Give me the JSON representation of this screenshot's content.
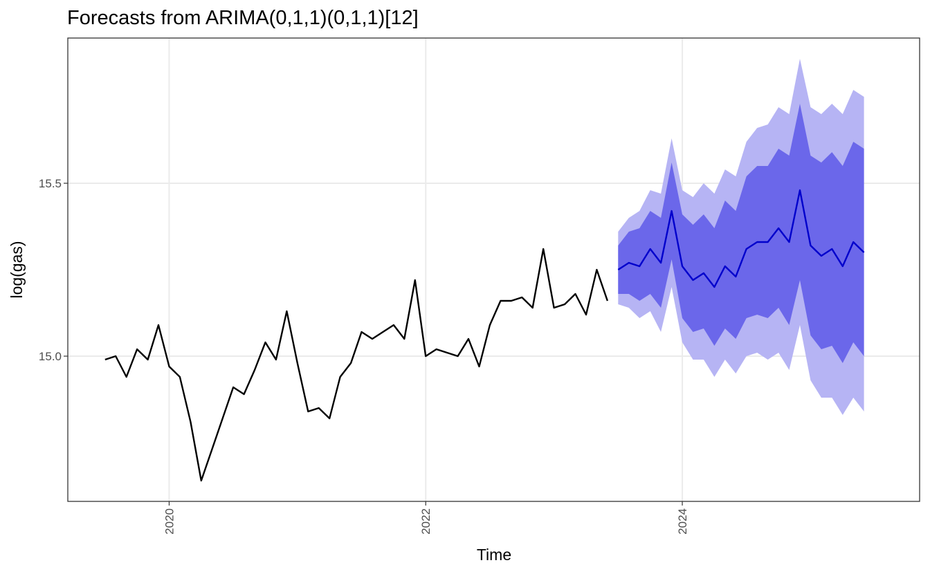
{
  "chart_data": {
    "type": "line",
    "title": "Forecasts from ARIMA(0,1,1)(0,1,1)[12]",
    "xlabel": "Time",
    "ylabel": "log(gas)",
    "x_ticks": [
      2020,
      2022,
      2024
    ],
    "y_ticks": [
      15.0,
      15.5
    ],
    "y_tick_labels": [
      "15.0",
      "15.5"
    ],
    "xlim": [
      2019.21,
      2025.85
    ],
    "ylim": [
      14.58,
      15.92
    ],
    "grid": true,
    "legend": "none",
    "colors": {
      "observed": "#000000",
      "forecast": "#0000cc",
      "band80": "#6b67ea",
      "band95": "#b6b4f4"
    },
    "series": [
      {
        "type": "observed",
        "start": 2019.5,
        "step": 0.08333,
        "values": [
          14.99,
          15.0,
          14.94,
          15.02,
          14.99,
          15.09,
          14.97,
          14.94,
          14.81,
          14.64,
          14.73,
          14.82,
          14.91,
          14.89,
          14.96,
          15.04,
          14.99,
          15.13,
          14.98,
          14.84,
          14.85,
          14.82,
          14.94,
          14.98,
          15.07,
          15.05,
          15.07,
          15.09,
          15.05,
          15.22,
          15.0,
          15.02,
          15.01,
          15.0,
          15.05,
          14.97,
          15.09,
          15.16,
          15.16,
          15.17,
          15.14,
          15.31,
          15.14,
          15.15,
          15.18,
          15.12,
          15.25,
          15.16
        ]
      },
      {
        "type": "forecast",
        "start": 2023.5,
        "step": 0.08333,
        "mean": [
          15.25,
          15.27,
          15.26,
          15.31,
          15.27,
          15.42,
          15.26,
          15.22,
          15.24,
          15.2,
          15.26,
          15.23,
          15.31,
          15.33,
          15.33,
          15.37,
          15.33,
          15.48,
          15.32,
          15.29,
          15.31,
          15.26,
          15.33,
          15.3
        ],
        "lo80": [
          15.18,
          15.18,
          15.16,
          15.18,
          15.14,
          15.28,
          15.11,
          15.07,
          15.08,
          15.03,
          15.08,
          15.05,
          15.11,
          15.12,
          15.11,
          15.14,
          15.09,
          15.22,
          15.06,
          15.02,
          15.03,
          14.98,
          15.04,
          15.0
        ],
        "hi80": [
          15.32,
          15.36,
          15.37,
          15.42,
          15.4,
          15.56,
          15.41,
          15.38,
          15.41,
          15.37,
          15.45,
          15.42,
          15.52,
          15.55,
          15.55,
          15.6,
          15.58,
          15.73,
          15.58,
          15.56,
          15.59,
          15.55,
          15.62,
          15.6
        ],
        "lo95": [
          15.15,
          15.14,
          15.11,
          15.13,
          15.07,
          15.2,
          15.04,
          14.99,
          14.99,
          14.94,
          14.99,
          14.95,
          15.0,
          15.01,
          14.99,
          15.01,
          14.96,
          15.09,
          14.93,
          14.88,
          14.88,
          14.83,
          14.88,
          14.84
        ],
        "hi95": [
          15.36,
          15.4,
          15.42,
          15.48,
          15.47,
          15.63,
          15.48,
          15.46,
          15.5,
          15.47,
          15.54,
          15.52,
          15.62,
          15.66,
          15.67,
          15.72,
          15.7,
          15.86,
          15.72,
          15.7,
          15.73,
          15.7,
          15.77,
          15.75
        ]
      }
    ]
  }
}
